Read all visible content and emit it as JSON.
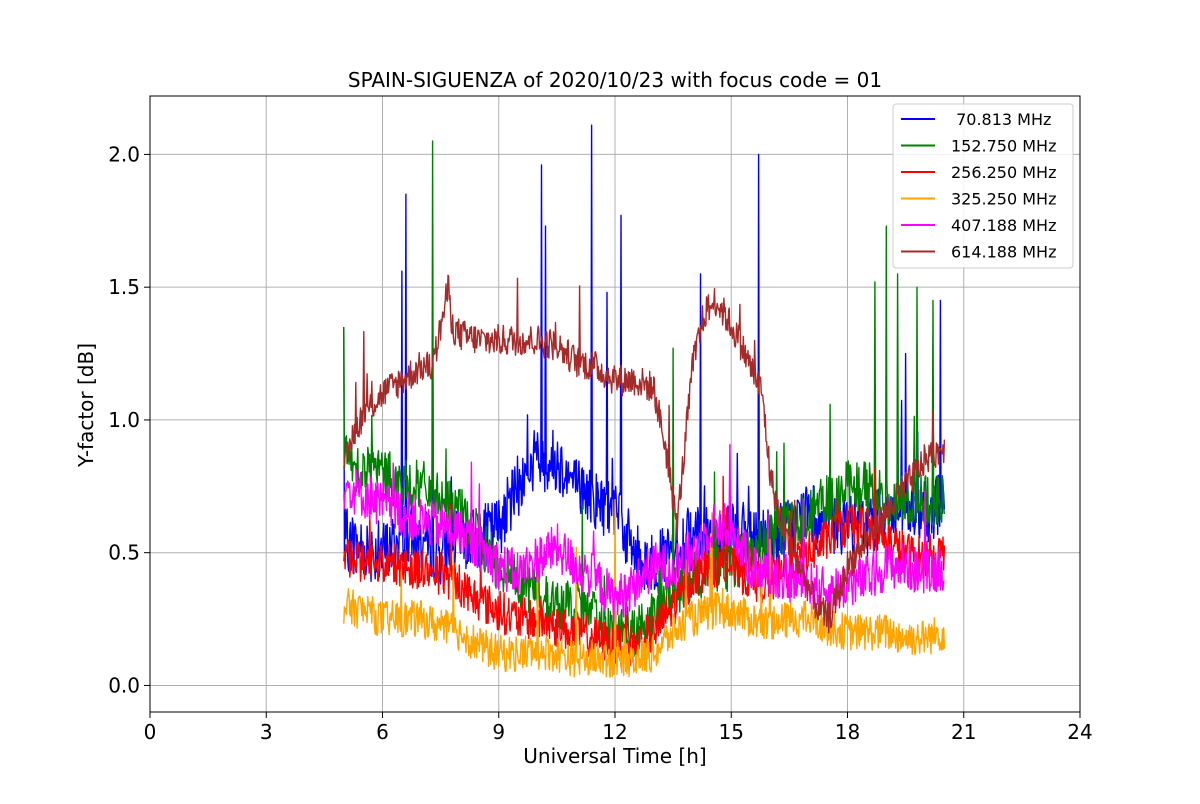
{
  "chart_data": {
    "type": "line",
    "title": "SPAIN-SIGUENZA of 2020/10/23 with focus code = 01",
    "xlabel": "Universal Time [h]",
    "ylabel": "Y-factor [dB]",
    "xlim": [
      0,
      24
    ],
    "ylim": [
      -0.1,
      2.22
    ],
    "xticks": [
      0,
      3,
      6,
      9,
      12,
      15,
      18,
      21,
      24
    ],
    "xtick_labels": [
      "0",
      "3",
      "6",
      "9",
      "12",
      "15",
      "18",
      "21",
      "24"
    ],
    "yticks": [
      0.0,
      0.5,
      1.0,
      1.5,
      2.0
    ],
    "ytick_labels": [
      "0.0",
      "0.5",
      "1.0",
      "1.5",
      "2.0"
    ],
    "grid": true,
    "legend_position": "top-right",
    "series": [
      {
        "name": " 70.813 MHz",
        "color": "#0000ff",
        "x": [
          5.0,
          5.5,
          6.0,
          6.5,
          7.0,
          7.5,
          8.0,
          8.5,
          9.0,
          9.5,
          10.0,
          10.5,
          11.0,
          11.5,
          12.0,
          12.5,
          13.0,
          13.5,
          14.0,
          14.5,
          15.0,
          15.5,
          16.0,
          16.5,
          17.0,
          17.5,
          18.0,
          18.5,
          19.0,
          19.5,
          20.0,
          20.5
        ],
        "y": [
          0.55,
          0.52,
          0.5,
          0.55,
          0.55,
          0.5,
          0.55,
          0.55,
          0.6,
          0.75,
          0.85,
          0.85,
          0.75,
          0.7,
          0.65,
          0.5,
          0.45,
          0.5,
          0.55,
          0.55,
          0.6,
          0.55,
          0.55,
          0.6,
          0.65,
          0.6,
          0.6,
          0.6,
          0.65,
          0.65,
          0.65,
          0.7
        ],
        "spikes": [
          [
            5.0,
            1.35
          ],
          [
            6.5,
            1.56
          ],
          [
            6.6,
            1.85
          ],
          [
            7.3,
            1.42
          ],
          [
            10.1,
            1.96
          ],
          [
            10.2,
            1.73
          ],
          [
            11.4,
            2.11
          ],
          [
            11.8,
            1.48
          ],
          [
            12.15,
            1.77
          ],
          [
            14.2,
            1.55
          ],
          [
            15.7,
            2.0
          ],
          [
            19.5,
            1.25
          ],
          [
            20.4,
            1.45
          ]
        ]
      },
      {
        "name": "152.750 MHz",
        "color": "#008000",
        "x": [
          5.0,
          5.5,
          6.0,
          6.5,
          7.0,
          7.5,
          8.0,
          8.5,
          9.0,
          9.5,
          10.0,
          10.5,
          11.0,
          11.5,
          12.0,
          12.5,
          13.0,
          13.5,
          14.0,
          14.5,
          15.0,
          15.5,
          16.0,
          16.5,
          17.0,
          17.5,
          18.0,
          18.5,
          19.0,
          19.5,
          20.0,
          20.5
        ],
        "y": [
          0.85,
          0.82,
          0.8,
          0.75,
          0.75,
          0.7,
          0.65,
          0.55,
          0.45,
          0.4,
          0.35,
          0.3,
          0.3,
          0.25,
          0.2,
          0.2,
          0.25,
          0.35,
          0.4,
          0.45,
          0.45,
          0.5,
          0.55,
          0.6,
          0.65,
          0.7,
          0.75,
          0.75,
          0.7,
          0.7,
          0.7,
          0.7
        ],
        "spikes": [
          [
            5.0,
            1.35
          ],
          [
            7.3,
            2.05
          ],
          [
            13.5,
            1.27
          ],
          [
            18.7,
            1.52
          ],
          [
            19.0,
            1.73
          ],
          [
            19.3,
            1.55
          ],
          [
            19.8,
            1.5
          ],
          [
            20.2,
            1.45
          ]
        ]
      },
      {
        "name": "256.250 MHz",
        "color": "#ff0000",
        "x": [
          5.0,
          5.5,
          6.0,
          6.5,
          7.0,
          7.5,
          8.0,
          8.5,
          9.0,
          9.5,
          10.0,
          10.5,
          11.0,
          11.5,
          12.0,
          12.5,
          13.0,
          13.5,
          14.0,
          14.5,
          15.0,
          15.5,
          16.0,
          16.5,
          17.0,
          17.5,
          18.0,
          18.5,
          19.0,
          19.5,
          20.0,
          20.5
        ],
        "y": [
          0.48,
          0.47,
          0.46,
          0.45,
          0.44,
          0.42,
          0.38,
          0.32,
          0.28,
          0.25,
          0.25,
          0.22,
          0.2,
          0.18,
          0.15,
          0.15,
          0.2,
          0.3,
          0.4,
          0.45,
          0.45,
          0.4,
          0.38,
          0.45,
          0.5,
          0.55,
          0.6,
          0.6,
          0.55,
          0.5,
          0.48,
          0.5
        ]
      },
      {
        "name": "325.250 MHz",
        "color": "#ffa500",
        "x": [
          5.0,
          5.5,
          6.0,
          6.5,
          7.0,
          7.5,
          8.0,
          8.5,
          9.0,
          9.5,
          10.0,
          10.5,
          11.0,
          11.5,
          12.0,
          12.5,
          13.0,
          13.5,
          14.0,
          14.5,
          15.0,
          15.5,
          16.0,
          16.5,
          17.0,
          17.5,
          18.0,
          18.5,
          19.0,
          19.5,
          20.0,
          20.5
        ],
        "y": [
          0.3,
          0.28,
          0.25,
          0.25,
          0.25,
          0.22,
          0.2,
          0.15,
          0.12,
          0.12,
          0.13,
          0.12,
          0.1,
          0.1,
          0.1,
          0.1,
          0.12,
          0.2,
          0.25,
          0.28,
          0.28,
          0.25,
          0.22,
          0.25,
          0.25,
          0.22,
          0.2,
          0.2,
          0.2,
          0.18,
          0.18,
          0.2
        ],
        "spikes": [
          [
            10.0,
            0.5
          ],
          [
            11.0,
            0.52
          ],
          [
            12.0,
            0.7
          ],
          [
            14.5,
            0.65
          ],
          [
            16.0,
            0.55
          ]
        ]
      },
      {
        "name": "407.188 MHz",
        "color": "#ff00ff",
        "x": [
          5.0,
          5.5,
          6.0,
          6.5,
          7.0,
          7.5,
          8.0,
          8.5,
          9.0,
          9.5,
          10.0,
          10.5,
          11.0,
          11.5,
          12.0,
          12.5,
          13.0,
          13.5,
          14.0,
          14.5,
          15.0,
          15.5,
          16.0,
          16.5,
          17.0,
          17.5,
          18.0,
          18.5,
          19.0,
          19.5,
          20.0,
          20.5
        ],
        "y": [
          0.75,
          0.72,
          0.68,
          0.65,
          0.62,
          0.6,
          0.58,
          0.52,
          0.45,
          0.42,
          0.48,
          0.52,
          0.45,
          0.4,
          0.32,
          0.38,
          0.45,
          0.45,
          0.5,
          0.6,
          0.6,
          0.45,
          0.42,
          0.4,
          0.38,
          0.35,
          0.38,
          0.4,
          0.45,
          0.45,
          0.42,
          0.45
        ]
      },
      {
        "name": "614.188 MHz",
        "color": "#a52a2a",
        "x": [
          5.0,
          5.25,
          5.5,
          6.0,
          6.5,
          7.0,
          7.3,
          7.5,
          7.7,
          7.8,
          8.0,
          8.5,
          9.0,
          9.5,
          10.0,
          10.5,
          11.0,
          11.5,
          12.0,
          12.5,
          13.0,
          13.3,
          13.6,
          14.0,
          14.3,
          14.6,
          14.9,
          15.2,
          15.5,
          15.8,
          16.0,
          16.3,
          16.6,
          16.9,
          17.2,
          17.5,
          17.8,
          18.0,
          18.5,
          19.0,
          19.5,
          20.0,
          20.5
        ],
        "y": [
          0.8,
          0.95,
          1.02,
          1.1,
          1.15,
          1.2,
          1.2,
          1.35,
          1.5,
          1.35,
          1.32,
          1.3,
          1.3,
          1.3,
          1.3,
          1.28,
          1.22,
          1.2,
          1.15,
          1.15,
          1.12,
          0.9,
          0.6,
          1.2,
          1.4,
          1.45,
          1.38,
          1.3,
          1.2,
          1.1,
          0.8,
          0.6,
          0.5,
          0.4,
          0.3,
          0.25,
          0.35,
          0.45,
          0.55,
          0.65,
          0.75,
          0.85,
          0.9
        ]
      }
    ]
  }
}
